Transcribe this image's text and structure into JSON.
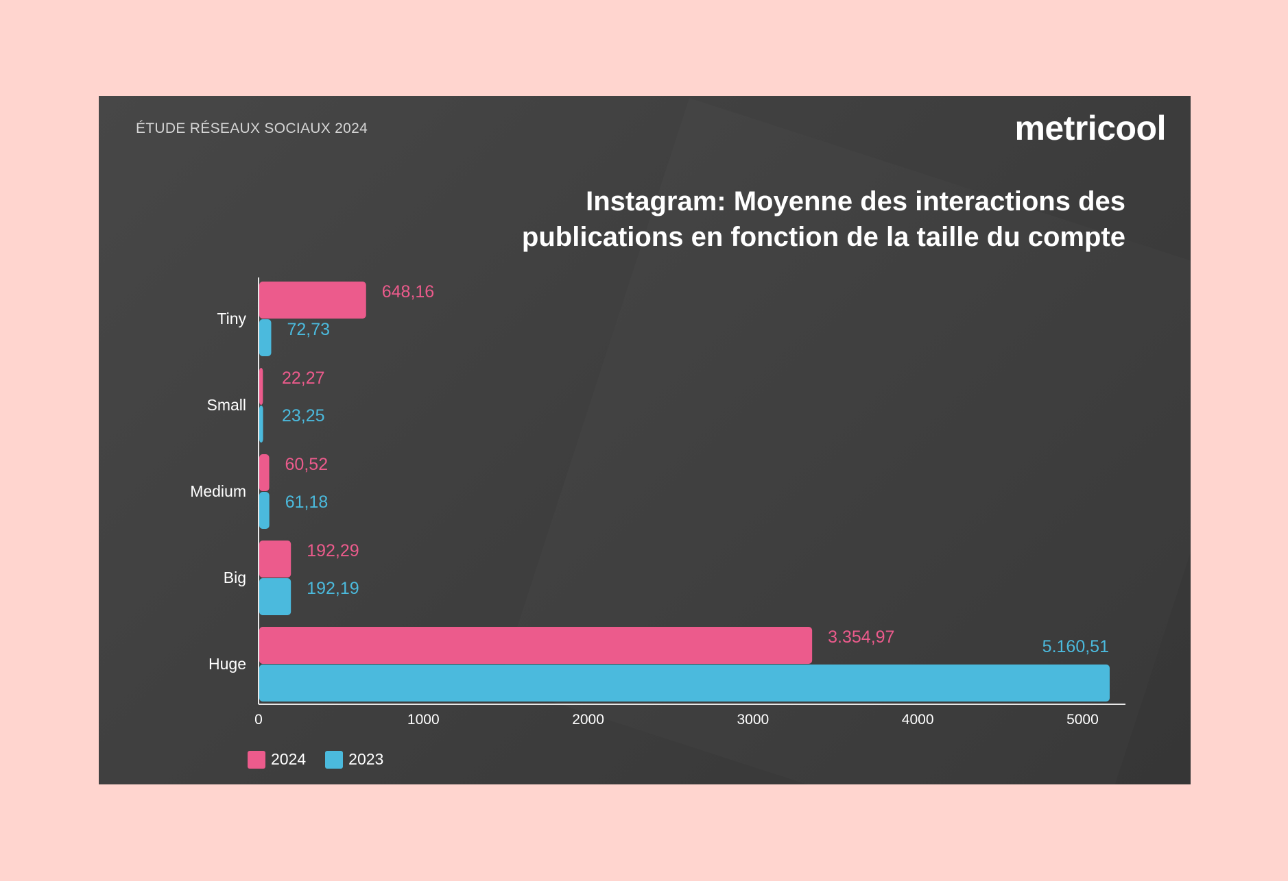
{
  "header": {
    "subtitle": "ÉTUDE RÉSEAUX SOCIAUX 2024",
    "logo": "metricool"
  },
  "chart_data": {
    "type": "bar",
    "orientation": "horizontal",
    "title": "Instagram: Moyenne des interactions des publications en fonction de la taille du compte",
    "categories": [
      "Tiny",
      "Small",
      "Medium",
      "Big",
      "Huge"
    ],
    "series": [
      {
        "name": "2024",
        "color": "#ec5b8c",
        "values": [
          648.16,
          22.27,
          60.52,
          192.29,
          3354.97
        ],
        "labels": [
          "648,16",
          "22,27",
          "60,52",
          "192,29",
          "3.354,97"
        ]
      },
      {
        "name": "2023",
        "color": "#4bbadd",
        "values": [
          72.73,
          23.25,
          61.18,
          192.19,
          5160.51
        ],
        "labels": [
          "72,73",
          "23,25",
          "61,18",
          "192,19",
          "5.160,51"
        ]
      }
    ],
    "xlim": [
      0,
      5250
    ],
    "xticks": [
      "0",
      "1000",
      "2000",
      "3000",
      "4000",
      "5000"
    ],
    "grid": false,
    "legend": "bottom-left"
  }
}
